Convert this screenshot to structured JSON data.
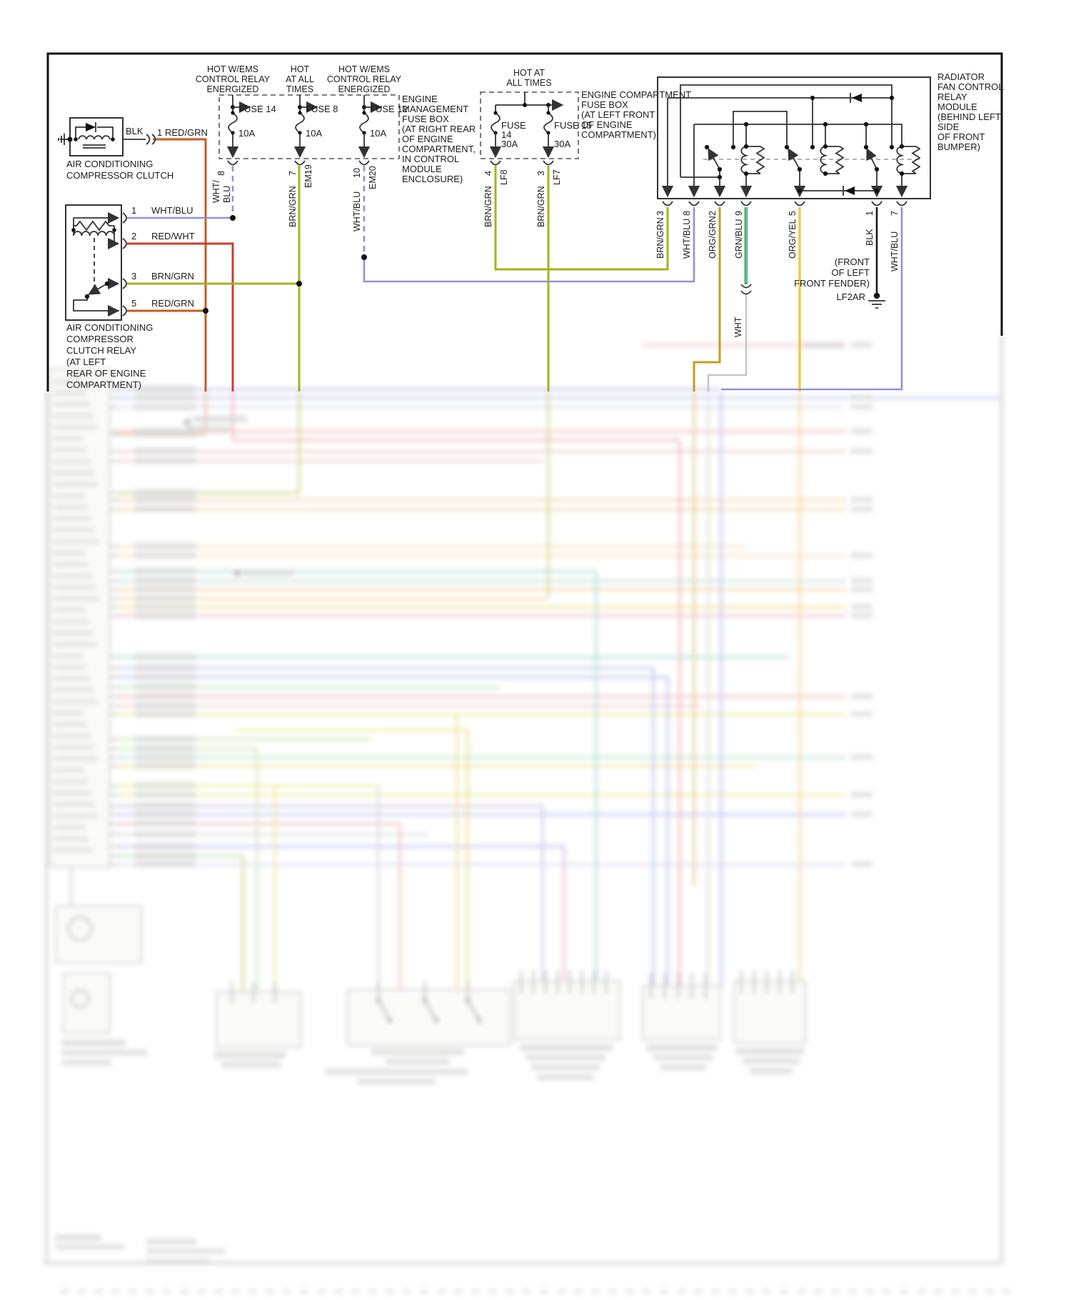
{
  "diagram": {
    "feed_headers": [
      [
        "HOT W/EMS",
        "CONTROL RELAY",
        "ENERGIZED"
      ],
      [
        "HOT",
        "AT ALL",
        "TIMES"
      ],
      [
        "HOT W/EMS",
        "CONTROL RELAY",
        "ENERGIZED"
      ],
      [
        "HOT AT",
        "ALL TIMES"
      ]
    ],
    "em_fuse_box": {
      "caption": [
        "ENGINE",
        "MANAGEMENT",
        "FUSE BOX",
        "(AT RIGHT REAR",
        "OF ENGINE",
        "COMPARTMENT,",
        "IN CONTROL",
        "MODULE",
        "ENCLOSURE)"
      ],
      "fuses": [
        {
          "label": "FUSE 14",
          "amps": "10A",
          "pin": "8",
          "wire1": "WHT/",
          "wire2": "BLU",
          "net": ""
        },
        {
          "label": "FUSE 8",
          "amps": "10A",
          "pin": "7",
          "wire1": "BRN/GRN",
          "net": "EM19"
        },
        {
          "label": "FUSE 12",
          "amps": "10A",
          "pin": "10",
          "wire1": "WHT/BLU",
          "net": "EM20"
        }
      ]
    },
    "ec_fuse_box": {
      "caption": [
        "ENGINE COMPARTMENT",
        "FUSE BOX",
        "(AT LEFT FRONT",
        "OF ENGINE",
        "COMPARTMENT)"
      ],
      "fuses": [
        {
          "label": "FUSE",
          "label2": "14",
          "amps": "30A",
          "pin": "4",
          "wire1": "BRN/GRN",
          "net": "LF8"
        },
        {
          "label": "FUSE 15",
          "amps": "30A",
          "pin": "3",
          "wire1": "BRN/GRN",
          "net": "LF7"
        }
      ]
    },
    "compressor_clutch": {
      "caption": [
        "AIR CONDITIONING",
        "COMPRESSOR CLUTCH"
      ],
      "wire_left": "BLK",
      "pin": "1",
      "wire_right": "RED/GRN"
    },
    "clutch_relay": {
      "caption": [
        "AIR CONDITIONING",
        "COMPRESSOR",
        "CLUTCH RELAY",
        "(AT LEFT",
        "REAR OF ENGINE",
        "COMPARTMENT)"
      ],
      "pins": [
        {
          "num": "1",
          "wire": "WHT/BLU"
        },
        {
          "num": "2",
          "wire": "RED/WHT"
        },
        {
          "num": "3",
          "wire": "BRN/GRN"
        },
        {
          "num": "5",
          "wire": "RED/GRN"
        }
      ]
    },
    "fan_relay_module": {
      "caption": [
        "RADIATOR",
        "FAN CONTROL",
        "RELAY",
        "MODULE",
        "(BEHIND LEFT",
        "SIDE",
        "OF FRONT",
        "BUMPER)"
      ],
      "pins": [
        {
          "num": "3",
          "wire": "BRN/GRN"
        },
        {
          "num": "8",
          "wire": "WHT/BLU"
        },
        {
          "num": "2",
          "wire": "ORG/GRN"
        },
        {
          "num": "9",
          "wire": "GRN/BLU"
        },
        {
          "num": "5",
          "wire": "ORG/YEL"
        },
        {
          "num": "1",
          "wire": "BLK"
        },
        {
          "num": "7",
          "wire": "WHT/BLU"
        }
      ],
      "splice_wire": "WHT"
    },
    "ground": {
      "net": "LF2AR",
      "caption": [
        "(FRONT",
        "OF LEFT",
        "FRONT FENDER)"
      ]
    },
    "wire_colors": {
      "BRN/GRN": "#a6b21f",
      "WHT/BLU": "#9093d8",
      "ORG/GRN": "#c39d1e",
      "GRN/BLU": "#4db44d/#3aa0d8",
      "ORG/YEL": "#eeb12c",
      "RED/GRN": "#c45c20",
      "RED/WHT": "#ce3a31",
      "BLK": "#1a1a1a",
      "WHT": "#c6c6c6"
    }
  }
}
